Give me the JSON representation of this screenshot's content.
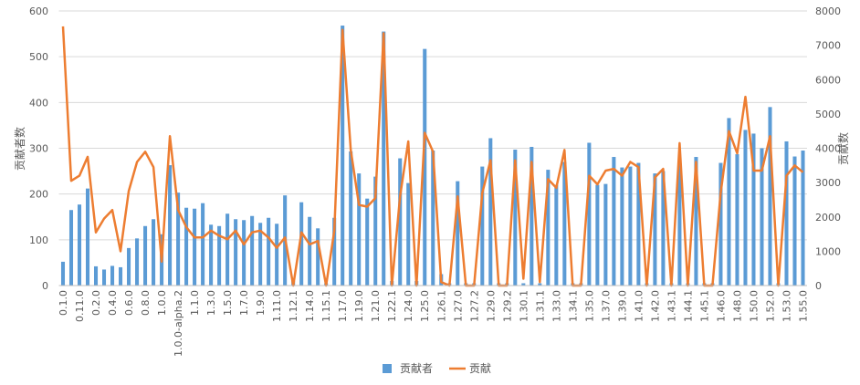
{
  "chart_data": {
    "type": "bar_line",
    "y_label": "贡献者数",
    "y2_label": "贡献数",
    "categories": [
      "0.1.0",
      null,
      "0.11.0",
      null,
      "0.2.0",
      null,
      "0.4.0",
      null,
      "0.6.0",
      null,
      "0.8.0",
      null,
      "1.0.0",
      null,
      "1.0.0-alpha.2",
      null,
      "1.1.0",
      null,
      "1.3.0",
      null,
      "1.5.0",
      null,
      "1.7.0",
      null,
      "1.9.0",
      null,
      "1.11.0",
      null,
      "1.12.1",
      null,
      "1.14.0",
      null,
      "1.15.1",
      null,
      "1.17.0",
      null,
      "1.19.0",
      null,
      "1.21.0",
      null,
      "1.22.1",
      null,
      "1.24.0",
      null,
      "1.25.0",
      null,
      "1.26.1",
      null,
      "1.27.0",
      null,
      "1.27.2",
      null,
      "1.29.0",
      null,
      "1.29.2",
      null,
      "1.30.1",
      null,
      "1.31.1",
      null,
      "1.33.0",
      null,
      "1.34.1",
      null,
      "1.35.0",
      null,
      "1.37.0",
      null,
      "1.39.0",
      null,
      "1.41.0",
      null,
      "1.42.0",
      null,
      "1.43.1",
      null,
      "1.44.1",
      null,
      "1.45.1",
      null,
      "1.46.0",
      null,
      "1.48.0",
      null,
      "1.50.0",
      null,
      "1.52.0",
      null,
      "1.53.0",
      null,
      "1.55.0"
    ],
    "series": [
      {
        "name": "贡献者",
        "color": "#5b9bd5",
        "values": [
          52,
          165,
          177,
          212,
          42,
          35,
          43,
          40,
          82,
          103,
          130,
          145,
          112,
          263,
          203,
          170,
          168,
          180,
          133,
          130,
          157,
          145,
          143,
          152,
          137,
          148,
          135,
          197,
          10,
          182,
          150,
          125,
          5,
          148,
          568,
          293,
          245,
          190,
          238,
          555,
          10,
          278,
          224,
          10,
          517,
          295,
          25,
          5,
          228,
          5,
          5,
          260,
          322,
          5,
          5,
          297,
          5,
          303,
          5,
          253,
          220,
          270,
          5,
          5,
          312,
          220,
          222,
          281,
          258,
          260,
          268,
          5,
          245,
          250,
          5,
          270,
          5,
          281,
          5,
          5,
          268,
          366,
          287,
          340,
          332,
          300,
          390,
          5,
          315,
          282,
          295
        ]
      },
      {
        "name": "贡献",
        "color": "#ed7d31",
        "axis": "y2",
        "values": [
          7550,
          3050,
          3200,
          3750,
          1550,
          1950,
          2200,
          1000,
          2750,
          3600,
          3900,
          3450,
          700,
          4350,
          2200,
          1700,
          1400,
          1400,
          1600,
          1450,
          1350,
          1600,
          1200,
          1550,
          1600,
          1400,
          1100,
          1400,
          0,
          1550,
          1200,
          1300,
          0,
          1600,
          7450,
          3950,
          2350,
          2300,
          2550,
          7350,
          0,
          2600,
          4200,
          0,
          4450,
          3900,
          100,
          0,
          2600,
          0,
          0,
          2700,
          3650,
          0,
          0,
          3650,
          200,
          3600,
          100,
          3100,
          2850,
          3950,
          0,
          0,
          3200,
          2950,
          3350,
          3400,
          3200,
          3600,
          3450,
          0,
          3150,
          3400,
          0,
          4150,
          0,
          3600,
          0,
          0,
          2700,
          4500,
          3850,
          5500,
          3350,
          3350,
          4350,
          0,
          3200,
          3500,
          3300
        ]
      }
    ],
    "ylim": [
      0,
      600
    ],
    "yticks": [
      0,
      100,
      200,
      300,
      400,
      500,
      600
    ],
    "y2lim": [
      0,
      8000
    ],
    "y2ticks": [
      0,
      1000,
      2000,
      3000,
      4000,
      5000,
      6000,
      7000,
      8000
    ],
    "grid": true,
    "legend": "bottom"
  }
}
